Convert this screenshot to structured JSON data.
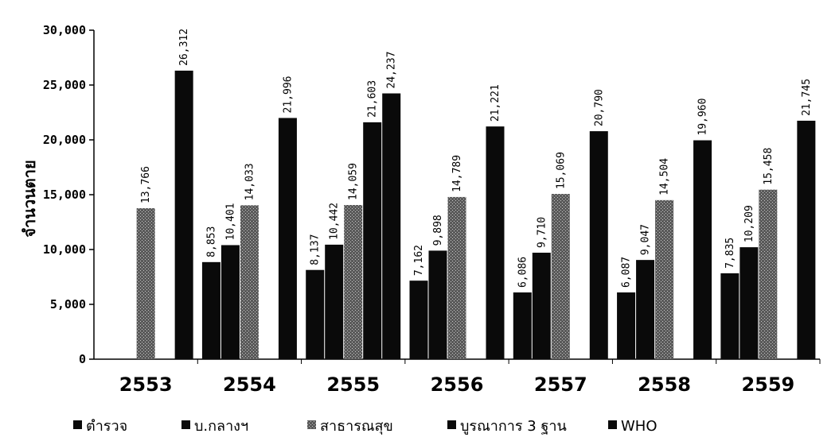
{
  "chart_data": {
    "type": "bar",
    "title": "",
    "xlabel": "",
    "ylabel": "จำนวนตาย",
    "ylim": [
      0,
      30000
    ],
    "yticks": [
      0,
      5000,
      10000,
      15000,
      20000,
      25000,
      30000
    ],
    "ytick_labels": [
      "0",
      "5,000",
      "10,000",
      "15,000",
      "20,000",
      "25,000",
      "30,000"
    ],
    "grid": false,
    "legend_position": "bottom",
    "categories": [
      "2553",
      "2554",
      "2555",
      "2556",
      "2557",
      "2558",
      "2559"
    ],
    "series": [
      {
        "name": "ตำรวจ",
        "color": "#0a0a0a",
        "values": [
          null,
          8853,
          8137,
          7162,
          6086,
          6087,
          7835
        ],
        "labels": [
          "",
          "8,853",
          "8,137",
          "7,162",
          "6,086",
          "6,087",
          "7,835"
        ]
      },
      {
        "name": "บ.กลางฯ",
        "color": "#0a0a0a",
        "values": [
          null,
          10401,
          10442,
          9898,
          9710,
          9047,
          10209
        ],
        "labels": [
          "",
          "10,401",
          "10,442",
          "9,898",
          "9,710",
          "9,047",
          "10,209"
        ]
      },
      {
        "name": "สาธารณสุข",
        "color": "#3c3c3c",
        "values": [
          13766,
          14033,
          14059,
          14789,
          15069,
          14504,
          15458
        ],
        "labels": [
          "13,766",
          "14,033",
          "14,059",
          "14,789",
          "15,069",
          "14,504",
          "15,458"
        ]
      },
      {
        "name": "บูรณาการ 3 ฐาน",
        "color": "#0a0a0a",
        "values": [
          null,
          null,
          21603,
          null,
          null,
          null,
          null
        ],
        "labels": [
          "",
          "",
          "21,603",
          "",
          "",
          "",
          ""
        ]
      },
      {
        "name": "WHO",
        "color": "#0a0a0a",
        "values": [
          26312,
          21996,
          24237,
          21221,
          20790,
          19960,
          21745
        ],
        "labels": [
          "26,312",
          "21,996",
          "24,237",
          "21,221",
          "20,790",
          "19,960",
          "21,745"
        ]
      }
    ]
  }
}
